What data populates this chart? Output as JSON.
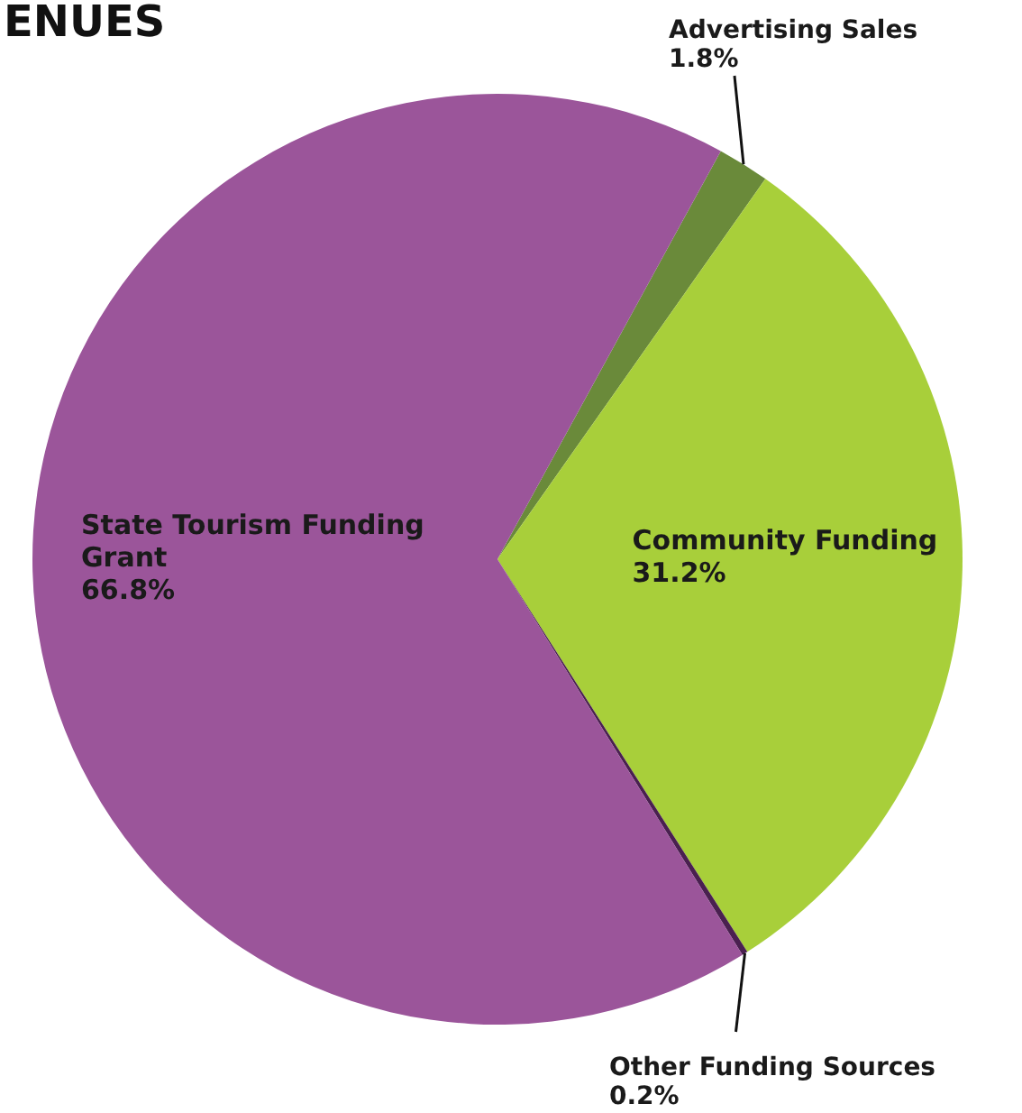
{
  "chart_data": {
    "type": "pie",
    "title": "ENUES",
    "categories": [
      "Advertising Sales",
      "Community Funding",
      "Other Funding Sources",
      "State Tourism Funding Grant"
    ],
    "values": [
      1.8,
      31.2,
      0.2,
      66.8
    ],
    "colors": [
      "#6a8a3a",
      "#a8cf3a",
      "#4a2050",
      "#9b559a"
    ],
    "value_labels": [
      "1.8%",
      "31.2%",
      "0.2%",
      "66.8%"
    ]
  }
}
